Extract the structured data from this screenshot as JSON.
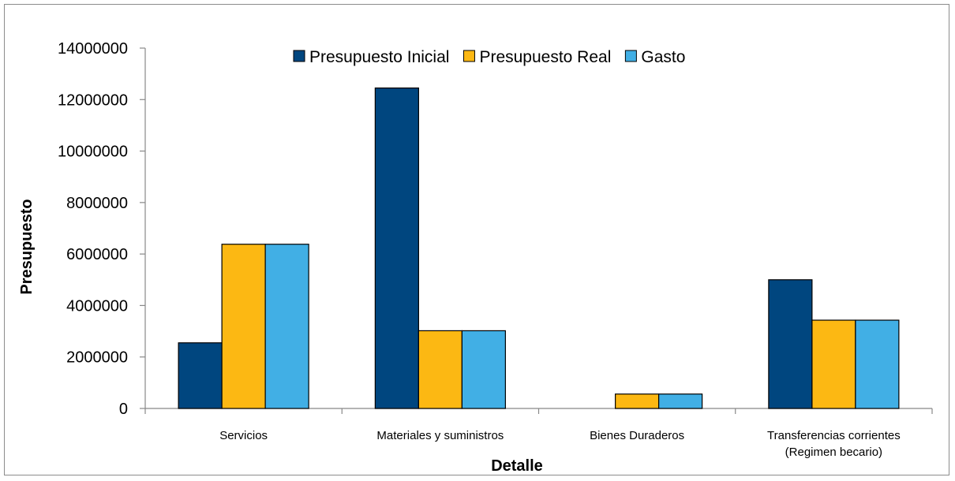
{
  "chart_data": {
    "type": "bar",
    "xlabel": "Detalle",
    "ylabel": "Presupuesto",
    "ylim": [
      0,
      14000000
    ],
    "yticks": [
      0,
      2000000,
      4000000,
      6000000,
      8000000,
      10000000,
      12000000,
      14000000
    ],
    "grid": false,
    "legend_position": "top",
    "categories": [
      [
        "Servicios"
      ],
      [
        "Materiales y suministros"
      ],
      [
        "Bienes Duraderos"
      ],
      [
        "Transferencias corrientes",
        "(Regimen becario)"
      ]
    ],
    "series": [
      {
        "name": "Presupuesto Inicial",
        "color": "#00467f",
        "values": [
          2550000,
          12450000,
          0,
          5000000
        ]
      },
      {
        "name": "Presupuesto Real",
        "color": "#fcb813",
        "values": [
          6380000,
          3020000,
          560000,
          3430000
        ]
      },
      {
        "name": "Gasto",
        "color": "#41afe5",
        "values": [
          6380000,
          3020000,
          560000,
          3430000
        ]
      }
    ]
  }
}
